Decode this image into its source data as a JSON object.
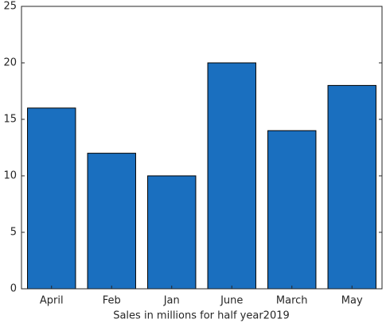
{
  "chart_data": {
    "type": "bar",
    "x_label": "Sales in millions for half year2019",
    "categories": [
      "April",
      "Feb",
      "Jan",
      "June",
      "March",
      "May"
    ],
    "values": [
      16,
      12,
      10,
      20,
      14,
      18
    ],
    "color": "#1a6fbf",
    "ylim": [
      0,
      25
    ],
    "yticks": [
      0,
      5,
      10,
      15,
      20,
      25
    ],
    "grid": false
  }
}
